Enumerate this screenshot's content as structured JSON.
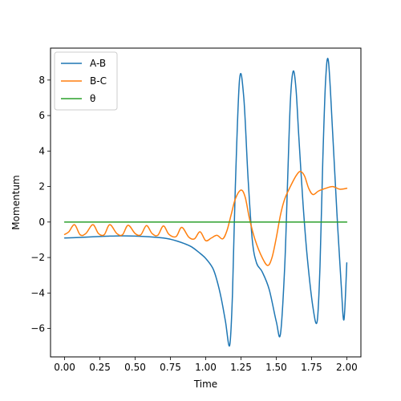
{
  "chart_data": {
    "type": "line",
    "title": "",
    "xlabel": "Time",
    "ylabel": "Momentum",
    "xlim": [
      -0.1,
      2.1
    ],
    "ylim": [
      -7.6,
      9.8
    ],
    "xticks": [
      0.0,
      0.25,
      0.5,
      0.75,
      1.0,
      1.25,
      1.5,
      1.75,
      2.0
    ],
    "xtick_labels": [
      "0.00",
      "0.25",
      "0.50",
      "0.75",
      "1.00",
      "1.25",
      "1.50",
      "1.75",
      "2.00"
    ],
    "yticks": [
      -6,
      -4,
      -2,
      0,
      2,
      4,
      6,
      8
    ],
    "ytick_labels": [
      "−6",
      "−4",
      "−2",
      "0",
      "2",
      "4",
      "6",
      "8"
    ],
    "grid": false,
    "legend_position": "upper-left",
    "series": [
      {
        "name": "A-B",
        "color": "#1f77b4",
        "x": [
          0.0,
          0.1,
          0.2,
          0.3,
          0.4,
          0.5,
          0.6,
          0.7,
          0.75,
          0.8,
          0.85,
          0.9,
          0.95,
          1.0,
          1.05,
          1.08,
          1.11,
          1.14,
          1.17,
          1.19,
          1.21,
          1.24,
          1.27,
          1.3,
          1.33,
          1.36,
          1.4,
          1.45,
          1.5,
          1.53,
          1.56,
          1.58,
          1.6,
          1.62,
          1.64,
          1.66,
          1.69,
          1.72,
          1.76,
          1.79,
          1.81,
          1.83,
          1.85,
          1.87,
          1.9,
          1.93,
          1.96,
          1.98,
          2.0
        ],
        "y": [
          -0.9,
          -0.87,
          -0.83,
          -0.8,
          -0.78,
          -0.79,
          -0.83,
          -0.9,
          -0.97,
          -1.08,
          -1.22,
          -1.4,
          -1.7,
          -2.05,
          -2.6,
          -3.3,
          -4.3,
          -5.6,
          -6.95,
          -4.0,
          2.0,
          8.05,
          7.0,
          2.5,
          -1.0,
          -2.3,
          -2.8,
          -3.8,
          -5.6,
          -6.3,
          -2.5,
          2.2,
          6.8,
          8.5,
          7.5,
          4.8,
          1.0,
          -2.0,
          -4.8,
          -5.6,
          -2.5,
          3.5,
          8.0,
          9.05,
          5.0,
          0.5,
          -3.5,
          -5.5,
          -2.3
        ]
      },
      {
        "name": "B-C",
        "color": "#ff7f0e",
        "x": [
          0.0,
          0.03,
          0.07,
          0.11,
          0.15,
          0.2,
          0.24,
          0.28,
          0.32,
          0.37,
          0.41,
          0.45,
          0.5,
          0.54,
          0.58,
          0.62,
          0.66,
          0.7,
          0.74,
          0.79,
          0.83,
          0.88,
          0.92,
          0.96,
          1.0,
          1.04,
          1.08,
          1.12,
          1.15,
          1.18,
          1.21,
          1.25,
          1.28,
          1.31,
          1.35,
          1.4,
          1.44,
          1.47,
          1.5,
          1.53,
          1.56,
          1.6,
          1.64,
          1.67,
          1.7,
          1.73,
          1.76,
          1.8,
          1.85,
          1.9,
          1.95,
          2.0
        ],
        "y": [
          -0.7,
          -0.55,
          -0.15,
          -0.72,
          -0.65,
          -0.15,
          -0.65,
          -0.72,
          -0.15,
          -0.65,
          -0.72,
          -0.18,
          -0.65,
          -0.72,
          -0.2,
          -0.65,
          -0.75,
          -0.22,
          -0.7,
          -0.82,
          -0.3,
          -0.85,
          -0.95,
          -0.55,
          -1.05,
          -0.9,
          -0.75,
          -0.95,
          -0.5,
          0.4,
          1.3,
          1.8,
          1.4,
          0.2,
          -1.0,
          -2.0,
          -2.45,
          -2.0,
          -0.9,
          0.4,
          1.3,
          2.0,
          2.6,
          2.85,
          2.6,
          1.9,
          1.55,
          1.75,
          1.9,
          2.0,
          1.85,
          1.9
        ]
      },
      {
        "name": "θ",
        "color": "#2ca02c",
        "x": [
          0.0,
          2.0
        ],
        "y": [
          0.0,
          0.0
        ]
      }
    ]
  }
}
